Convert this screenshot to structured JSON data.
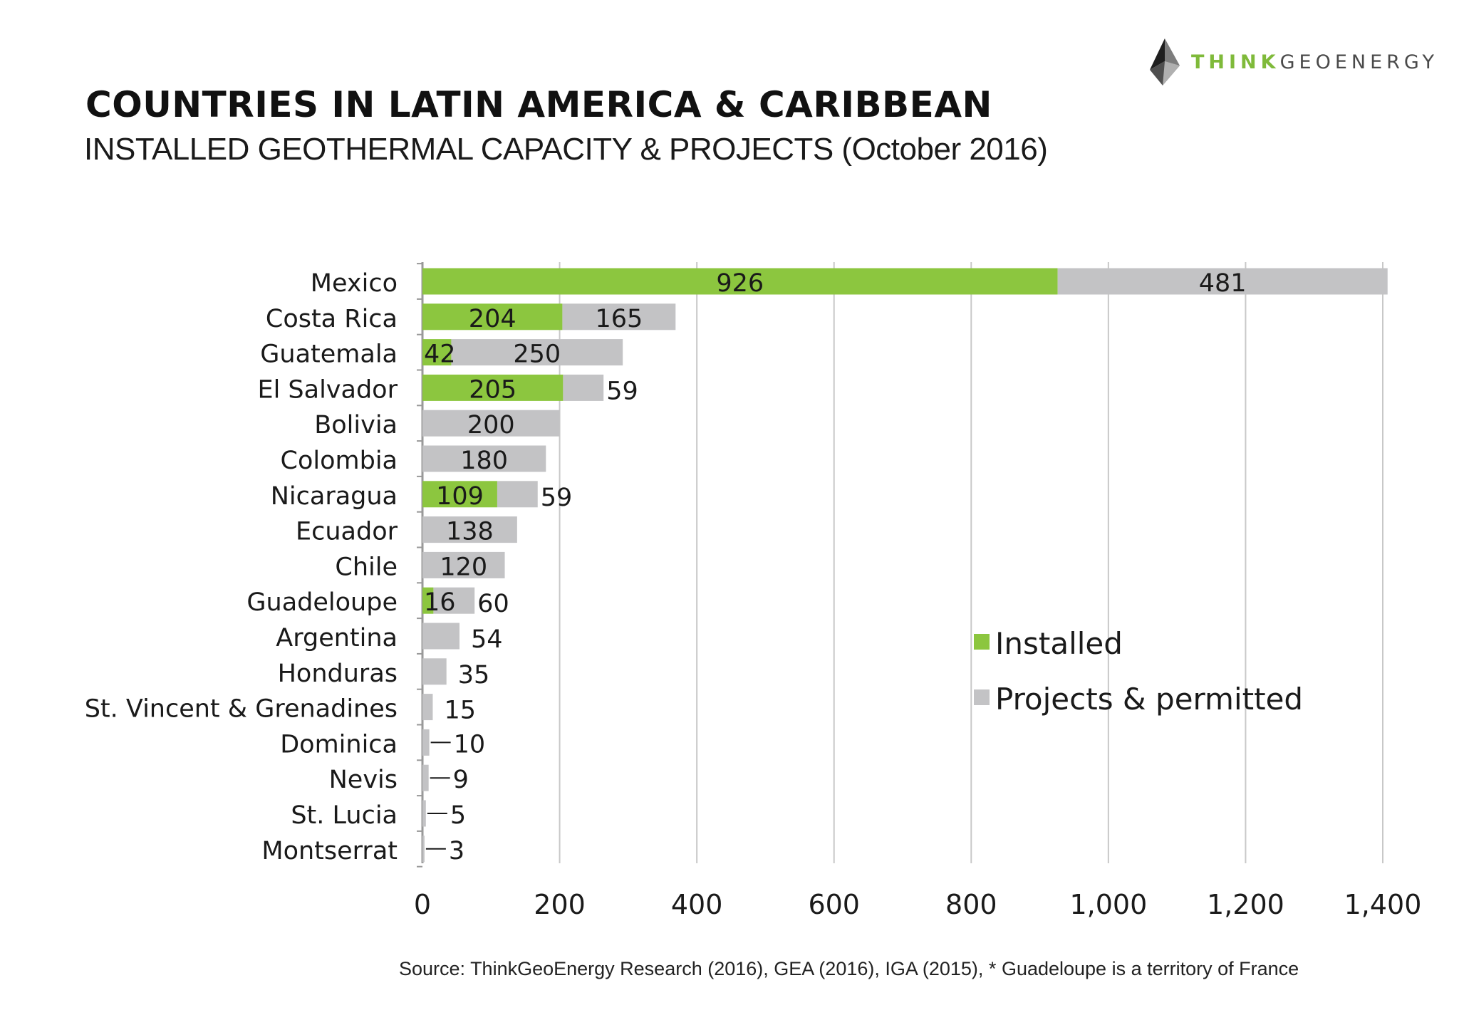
{
  "header": {
    "title": "COUNTRIES IN LATIN AMERICA & CARIBBEAN",
    "subtitle": "INSTALLED GEOTHERMAL CAPACITY & PROJECTS (October 2016)"
  },
  "logo": {
    "part1": "THINK",
    "part2": "GEOENERGY",
    "icon": "pyramid-logo-icon"
  },
  "source": "Source: ThinkGeoEnergy Research (2016), GEA (2016), IGA (2015), * Guadeloupe is a territory of France",
  "colors": {
    "installed": "#8cc63f",
    "projects": "#c3c3c5",
    "gridline": "#c8c8c8",
    "axis": "#999999",
    "logo_green": "#7fba3a"
  },
  "chart_data": {
    "type": "bar",
    "orientation": "horizontal",
    "stacked": true,
    "categories": [
      "Mexico",
      "Costa Rica",
      "Guatemala",
      "El Salvador",
      "Bolivia",
      "Colombia",
      "Nicaragua",
      "Ecuador",
      "Chile",
      "Guadeloupe",
      "Argentina",
      "Honduras",
      "St. Vincent & Grenadines",
      "Dominica",
      "Nevis",
      "St. Lucia",
      "Montserrat"
    ],
    "series": [
      {
        "name": "Installed",
        "values": [
          926,
          204,
          42,
          205,
          0,
          0,
          109,
          0,
          0,
          16,
          0,
          0,
          0,
          0,
          0,
          0,
          0
        ]
      },
      {
        "name": "Projects & permitted",
        "values": [
          481,
          165,
          250,
          59,
          200,
          180,
          59,
          138,
          120,
          60,
          54,
          35,
          15,
          10,
          9,
          5,
          3
        ]
      }
    ],
    "xlim": [
      0,
      1400
    ],
    "xticks": [
      0,
      200,
      400,
      600,
      800,
      1000,
      1200,
      1400
    ],
    "xtick_labels": [
      "0",
      "200",
      "400",
      "600",
      "800",
      "1,000",
      "1,200",
      "1,400"
    ],
    "grid": true,
    "legend": "right"
  }
}
